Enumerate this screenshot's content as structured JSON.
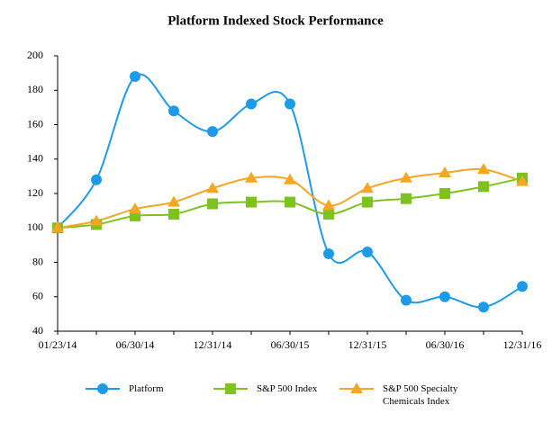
{
  "chart_data": {
    "type": "line",
    "title": "Platform Indexed Stock Performance",
    "categories": [
      "01/23/14",
      null,
      "06/30/14",
      null,
      "12/31/14",
      null,
      "06/30/15",
      null,
      "12/31/15",
      null,
      "06/30/16",
      null,
      "12/31/16"
    ],
    "series": [
      {
        "name": "Platform",
        "color": "#1e9be8",
        "marker": "circle",
        "values": [
          100,
          128,
          188,
          168,
          156,
          172,
          172,
          85,
          86,
          58,
          60,
          54,
          66
        ]
      },
      {
        "name": "S&P 500 Index",
        "color": "#7dc21e",
        "marker": "square",
        "values": [
          100,
          102,
          107,
          108,
          114,
          115,
          115,
          108,
          115,
          117,
          120,
          124,
          129
        ]
      },
      {
        "name": "S&P 500 Specialty Chemicals Index",
        "color": "#f5a623",
        "marker": "triangle",
        "values": [
          100,
          104,
          111,
          115,
          123,
          129,
          128,
          113,
          123,
          129,
          132,
          134,
          127
        ]
      }
    ],
    "ylim": [
      40,
      200
    ],
    "yticks": [
      40,
      60,
      80,
      100,
      120,
      140,
      160,
      180,
      200
    ],
    "grid": false
  }
}
